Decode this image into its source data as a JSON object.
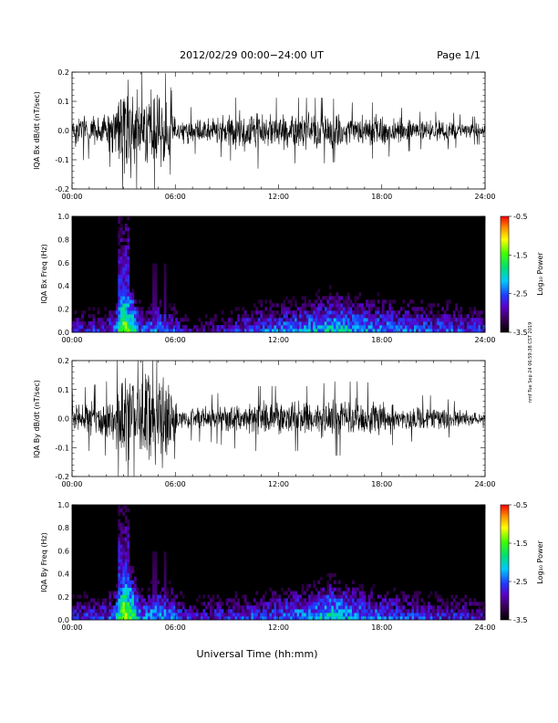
{
  "header": {
    "title": "2012/02/29  00:00−24:00 UT",
    "page_label": "Page 1/1"
  },
  "footer": {
    "x_axis_label": "Universal Time (hh:mm)",
    "side_stamp": "nmf Tue Sep 24 06:59:38 CST 2019"
  },
  "chart_data": [
    {
      "type": "line",
      "ylabel": "IQA Bx dB/dt (nT/sec)",
      "xlim": [
        0,
        24
      ],
      "ylim": [
        -0.2,
        0.2
      ],
      "xticks": [
        "00:00",
        "06:00",
        "12:00",
        "18:00",
        "24:00"
      ],
      "yticks": [
        "-0.2",
        "-0.1",
        "0.0",
        "0.1",
        "0.2"
      ],
      "line_color": "#000000",
      "series": [
        {
          "x": [
            0,
            1,
            2,
            2.5,
            2.75,
            3,
            3.25,
            3.5,
            4,
            4.5,
            5,
            5.5,
            6,
            6.5,
            7,
            8,
            9,
            10,
            10.5,
            11,
            12,
            13,
            14,
            15,
            16,
            17,
            18,
            19,
            20,
            21,
            22,
            23,
            24
          ],
          "amplitude": [
            0.07,
            0.06,
            0.07,
            0.09,
            0.2,
            0.2,
            0.2,
            0.2,
            0.12,
            0.16,
            0.14,
            0.12,
            0.06,
            0.05,
            0.05,
            0.05,
            0.06,
            0.08,
            0.1,
            0.07,
            0.07,
            0.07,
            0.07,
            0.07,
            0.06,
            0.06,
            0.06,
            0.05,
            0.04,
            0.04,
            0.04,
            0.03,
            0.03
          ]
        }
      ]
    },
    {
      "type": "heatmap",
      "ylabel": "IQA Bx Freq (Hz)",
      "xlim": [
        0,
        24
      ],
      "ylim": [
        0,
        1.0
      ],
      "xticks": [
        "00:00",
        "06:00",
        "12:00",
        "18:00",
        "24:00"
      ],
      "yticks": [
        "0.0",
        "0.2",
        "0.4",
        "0.6",
        "0.8",
        "1.0"
      ],
      "colorbar": {
        "label": "Log₁₀ Power",
        "ticks": [
          "-0.5",
          "-1.5",
          "-2.5",
          "-3.5"
        ],
        "range": [
          -3.5,
          -0.5
        ]
      },
      "low_freq_power": {
        "x": [
          0,
          1,
          2,
          2.5,
          3,
          3.5,
          4,
          5,
          6,
          7,
          8,
          9,
          10,
          11,
          12,
          13,
          14,
          15,
          16,
          17,
          18,
          19,
          20,
          21,
          22,
          23,
          24
        ],
        "values": [
          -2.8,
          -2.7,
          -2.7,
          -2.4,
          -1.2,
          -1.6,
          -2.6,
          -2.3,
          -2.6,
          -3.1,
          -3.0,
          -2.8,
          -2.6,
          -2.5,
          -2.4,
          -2.3,
          -2.2,
          -2.0,
          -2.1,
          -2.2,
          -2.3,
          -2.4,
          -2.4,
          -2.5,
          -2.5,
          -2.6,
          -2.6
        ]
      }
    },
    {
      "type": "line",
      "ylabel": "IQA By dB/dt (nT/sec)",
      "xlim": [
        0,
        24
      ],
      "ylim": [
        -0.2,
        0.2
      ],
      "xticks": [
        "00:00",
        "06:00",
        "12:00",
        "18:00",
        "24:00"
      ],
      "yticks": [
        "-0.2",
        "-0.1",
        "0.0",
        "0.1",
        "0.2"
      ],
      "line_color": "#000000",
      "series": [
        {
          "x": [
            0,
            1,
            2,
            2.5,
            2.75,
            3,
            3.25,
            3.5,
            4,
            4.5,
            5,
            5.5,
            6,
            6.5,
            7,
            8,
            9,
            10,
            10.5,
            11,
            12,
            13,
            14,
            15,
            16,
            17,
            18,
            19,
            20,
            21,
            22,
            23,
            24
          ],
          "amplitude": [
            0.06,
            0.07,
            0.08,
            0.1,
            0.2,
            0.2,
            0.2,
            0.2,
            0.2,
            0.2,
            0.18,
            0.2,
            0.08,
            0.03,
            0.05,
            0.05,
            0.06,
            0.07,
            0.07,
            0.07,
            0.07,
            0.07,
            0.07,
            0.08,
            0.08,
            0.08,
            0.07,
            0.05,
            0.05,
            0.05,
            0.04,
            0.03,
            0.02
          ]
        }
      ]
    },
    {
      "type": "heatmap",
      "ylabel": "IQA By Freq (Hz)",
      "xlim": [
        0,
        24
      ],
      "ylim": [
        0,
        1.0
      ],
      "xticks": [
        "00:00",
        "06:00",
        "12:00",
        "18:00",
        "24:00"
      ],
      "yticks": [
        "0.0",
        "0.2",
        "0.4",
        "0.6",
        "0.8",
        "1.0"
      ],
      "colorbar": {
        "label": "Log₁₀ Power",
        "ticks": [
          "-0.5",
          "-1.5",
          "-2.5",
          "-3.5"
        ],
        "range": [
          -3.5,
          -0.5
        ]
      },
      "low_freq_power": {
        "x": [
          0,
          1,
          2,
          2.5,
          3,
          3.5,
          4,
          5,
          6,
          7,
          8,
          9,
          10,
          11,
          12,
          13,
          14,
          15,
          16,
          17,
          18,
          19,
          20,
          21,
          22,
          23,
          24
        ],
        "values": [
          -2.7,
          -2.6,
          -2.6,
          -2.3,
          -1.0,
          -1.5,
          -2.4,
          -2.1,
          -2.4,
          -2.8,
          -2.7,
          -2.6,
          -2.6,
          -2.5,
          -2.4,
          -2.3,
          -2.2,
          -1.9,
          -2.1,
          -2.3,
          -2.4,
          -2.5,
          -2.6,
          -2.6,
          -2.7,
          -2.7,
          -2.8
        ]
      }
    }
  ]
}
